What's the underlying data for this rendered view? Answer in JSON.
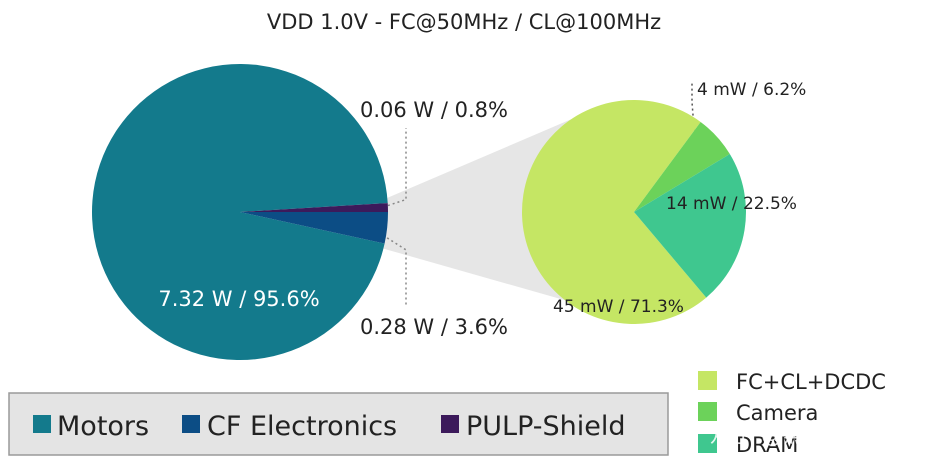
{
  "chart_data": {
    "type": "pie",
    "title": "VDD 1.0V - FC@50MHz / CL@100MHz",
    "main_pie": {
      "slices": [
        {
          "name": "Motors",
          "watts": 7.32,
          "percent": 95.6,
          "label": "7.32 W / 95.6%",
          "color": "#137a8c"
        },
        {
          "name": "CF Electronics",
          "watts": 0.28,
          "percent": 3.6,
          "label": "0.28 W / 3.6%",
          "color": "#0c4d85"
        },
        {
          "name": "PULP-Shield",
          "watts": 0.06,
          "percent": 0.8,
          "label": "0.06 W / 0.8%",
          "color": "#3c1a5b"
        }
      ]
    },
    "detail_pie": {
      "slices": [
        {
          "name": "FC+CL+DCDC",
          "mw": 45,
          "percent": 71.3,
          "label": "45 mW / 71.3%",
          "color": "#c5e664"
        },
        {
          "name": "Camera",
          "mw": 4,
          "percent": 6.2,
          "label": "4 mW / 6.2%",
          "color": "#6cd25a"
        },
        {
          "name": "DRAM",
          "mw": 14,
          "percent": 22.5,
          "label": "14 mW / 22.5%",
          "color": "#3fc78f"
        }
      ]
    }
  },
  "legend_main": [
    "Motors",
    "CF Electronics",
    "PULP-Shield"
  ],
  "legend_detail": [
    "FC+CL+DCDC",
    "Camera",
    "DRAM"
  ],
  "watermark": "知乎 @黑森矩阵"
}
